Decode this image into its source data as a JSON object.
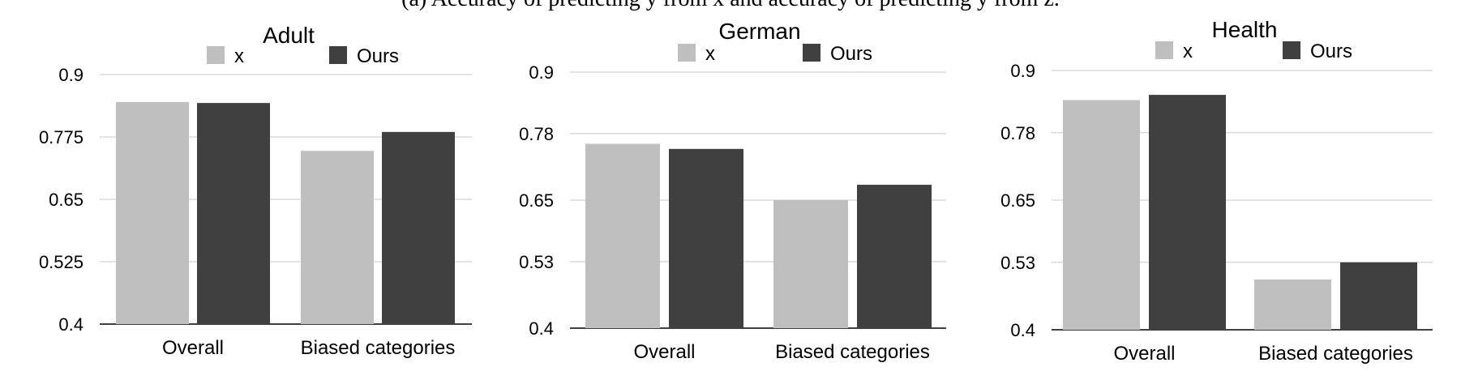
{
  "caption": "(a) Accuracy of predicting y from x and accuracy of predicting y from z.",
  "chart_data": [
    {
      "type": "bar",
      "title": "Adult",
      "categories": [
        "Overall",
        "Biased categories"
      ],
      "series": [
        {
          "name": "x",
          "color": "#bfbfbf",
          "values": [
            0.845,
            0.747
          ]
        },
        {
          "name": "Ours",
          "color": "#404040",
          "values": [
            0.843,
            0.785
          ]
        }
      ],
      "ylim": [
        0.4,
        0.9
      ],
      "yticks": [
        0.4,
        0.525,
        0.65,
        0.775,
        0.9
      ],
      "ytick_labels": [
        "0.4",
        "0.525",
        "0.65",
        "0.775",
        "0.9"
      ],
      "grid": true,
      "legend": "top"
    },
    {
      "type": "bar",
      "title": "German",
      "categories": [
        "Overall",
        "Biased categories"
      ],
      "series": [
        {
          "name": "x",
          "color": "#bfbfbf",
          "values": [
            0.76,
            0.65
          ]
        },
        {
          "name": "Ours",
          "color": "#404040",
          "values": [
            0.75,
            0.68
          ]
        }
      ],
      "ylim": [
        0.4,
        0.9
      ],
      "yticks": [
        0.4,
        0.53,
        0.65,
        0.78,
        0.9
      ],
      "ytick_labels": [
        "0.4",
        "0.53",
        "0.65",
        "0.78",
        "0.9"
      ],
      "grid": true,
      "legend": "top"
    },
    {
      "type": "bar",
      "title": "Health",
      "categories": [
        "Overall",
        "Biased categories"
      ],
      "series": [
        {
          "name": "x",
          "color": "#bfbfbf",
          "values": [
            0.843,
            0.497
          ]
        },
        {
          "name": "Ours",
          "color": "#404040",
          "values": [
            0.853,
            0.53
          ]
        }
      ],
      "ylim": [
        0.4,
        0.9
      ],
      "yticks": [
        0.4,
        0.53,
        0.65,
        0.78,
        0.9
      ],
      "ytick_labels": [
        "0.4",
        "0.53",
        "0.65",
        "0.78",
        "0.9"
      ],
      "grid": true,
      "legend": "top"
    }
  ]
}
